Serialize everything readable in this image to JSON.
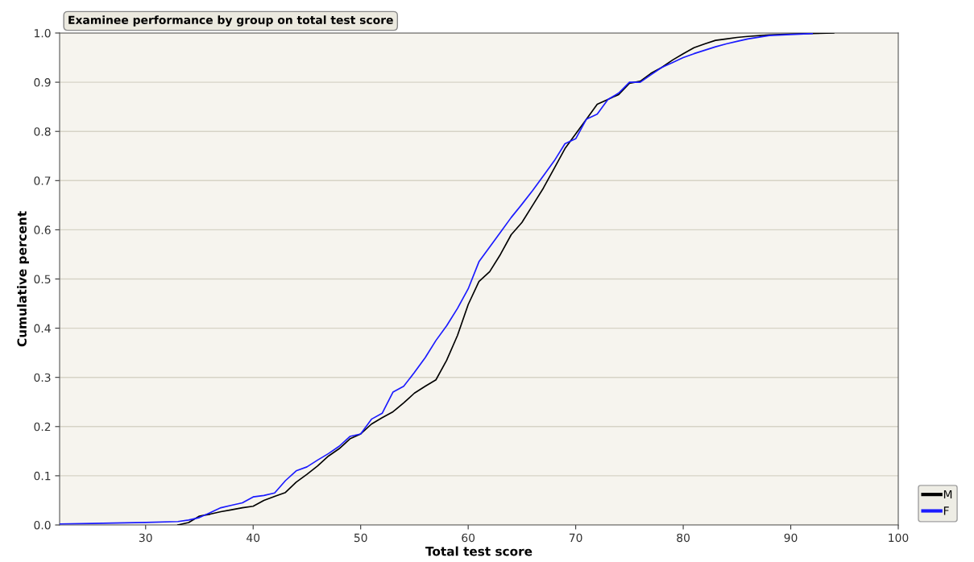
{
  "chart_data": {
    "type": "line",
    "title": "Examinee performance by group on total test score",
    "xlabel": "Total test score",
    "ylabel": "Cumulative percent",
    "xlim": [
      22,
      100
    ],
    "xticks": [
      30,
      40,
      50,
      60,
      70,
      80,
      90,
      100
    ],
    "ylim": [
      0,
      1
    ],
    "yticks": [
      {
        "value": 0,
        "label": "0.0"
      },
      0.1,
      0.2,
      0.3,
      0.4,
      0.5,
      0.6,
      0.7,
      0.8,
      0.9,
      {
        "value": 1,
        "label": "1.0"
      }
    ],
    "grid": "y",
    "legend": "bottom right",
    "marker": "none",
    "line_style": "solid",
    "series": [
      {
        "name": "M",
        "color": "#000000",
        "x": [
          33,
          34,
          35,
          36,
          37,
          38,
          39,
          40,
          41,
          42,
          43,
          44,
          45,
          46,
          47,
          48,
          49,
          50,
          51,
          52,
          53,
          54,
          55,
          56,
          57,
          58,
          59,
          60,
          61,
          62,
          63,
          64,
          65,
          66,
          67,
          68,
          69,
          70,
          71,
          72,
          73,
          74,
          75,
          76,
          77,
          78,
          79,
          80,
          81,
          82,
          83,
          84,
          85,
          86,
          88,
          90,
          94
        ],
        "values": [
          0.0,
          0.005,
          0.018,
          0.022,
          0.027,
          0.031,
          0.035,
          0.038,
          0.05,
          0.058,
          0.066,
          0.087,
          0.103,
          0.12,
          0.14,
          0.155,
          0.175,
          0.185,
          0.205,
          0.218,
          0.23,
          0.248,
          0.268,
          0.282,
          0.295,
          0.335,
          0.385,
          0.448,
          0.495,
          0.515,
          0.55,
          0.59,
          0.615,
          0.65,
          0.685,
          0.725,
          0.765,
          0.795,
          0.825,
          0.855,
          0.865,
          0.875,
          0.898,
          0.902,
          0.918,
          0.93,
          0.945,
          0.958,
          0.97,
          0.978,
          0.985,
          0.988,
          0.991,
          0.993,
          0.996,
          0.998,
          1.0
        ]
      },
      {
        "name": "F",
        "color": "#1a1aff",
        "x": [
          22,
          25,
          30,
          33,
          34,
          35,
          36,
          37,
          38,
          39,
          40,
          41,
          42,
          43,
          44,
          45,
          46,
          47,
          48,
          49,
          50,
          51,
          52,
          53,
          54,
          55,
          56,
          57,
          58,
          59,
          60,
          61,
          62,
          63,
          64,
          65,
          66,
          67,
          68,
          69,
          70,
          71,
          72,
          73,
          74,
          75,
          76,
          77,
          78,
          79,
          80,
          81,
          82,
          83,
          84,
          85,
          86,
          88,
          90,
          92
        ],
        "values": [
          0.002,
          0.003,
          0.005,
          0.007,
          0.01,
          0.015,
          0.025,
          0.035,
          0.04,
          0.045,
          0.057,
          0.06,
          0.065,
          0.09,
          0.11,
          0.118,
          0.132,
          0.145,
          0.16,
          0.18,
          0.185,
          0.215,
          0.227,
          0.27,
          0.282,
          0.31,
          0.34,
          0.375,
          0.405,
          0.44,
          0.48,
          0.535,
          0.565,
          0.595,
          0.625,
          0.652,
          0.68,
          0.71,
          0.74,
          0.775,
          0.785,
          0.825,
          0.835,
          0.865,
          0.878,
          0.9,
          0.9,
          0.915,
          0.93,
          0.94,
          0.95,
          0.958,
          0.965,
          0.972,
          0.978,
          0.983,
          0.988,
          0.995,
          0.997,
          0.999
        ]
      }
    ]
  }
}
